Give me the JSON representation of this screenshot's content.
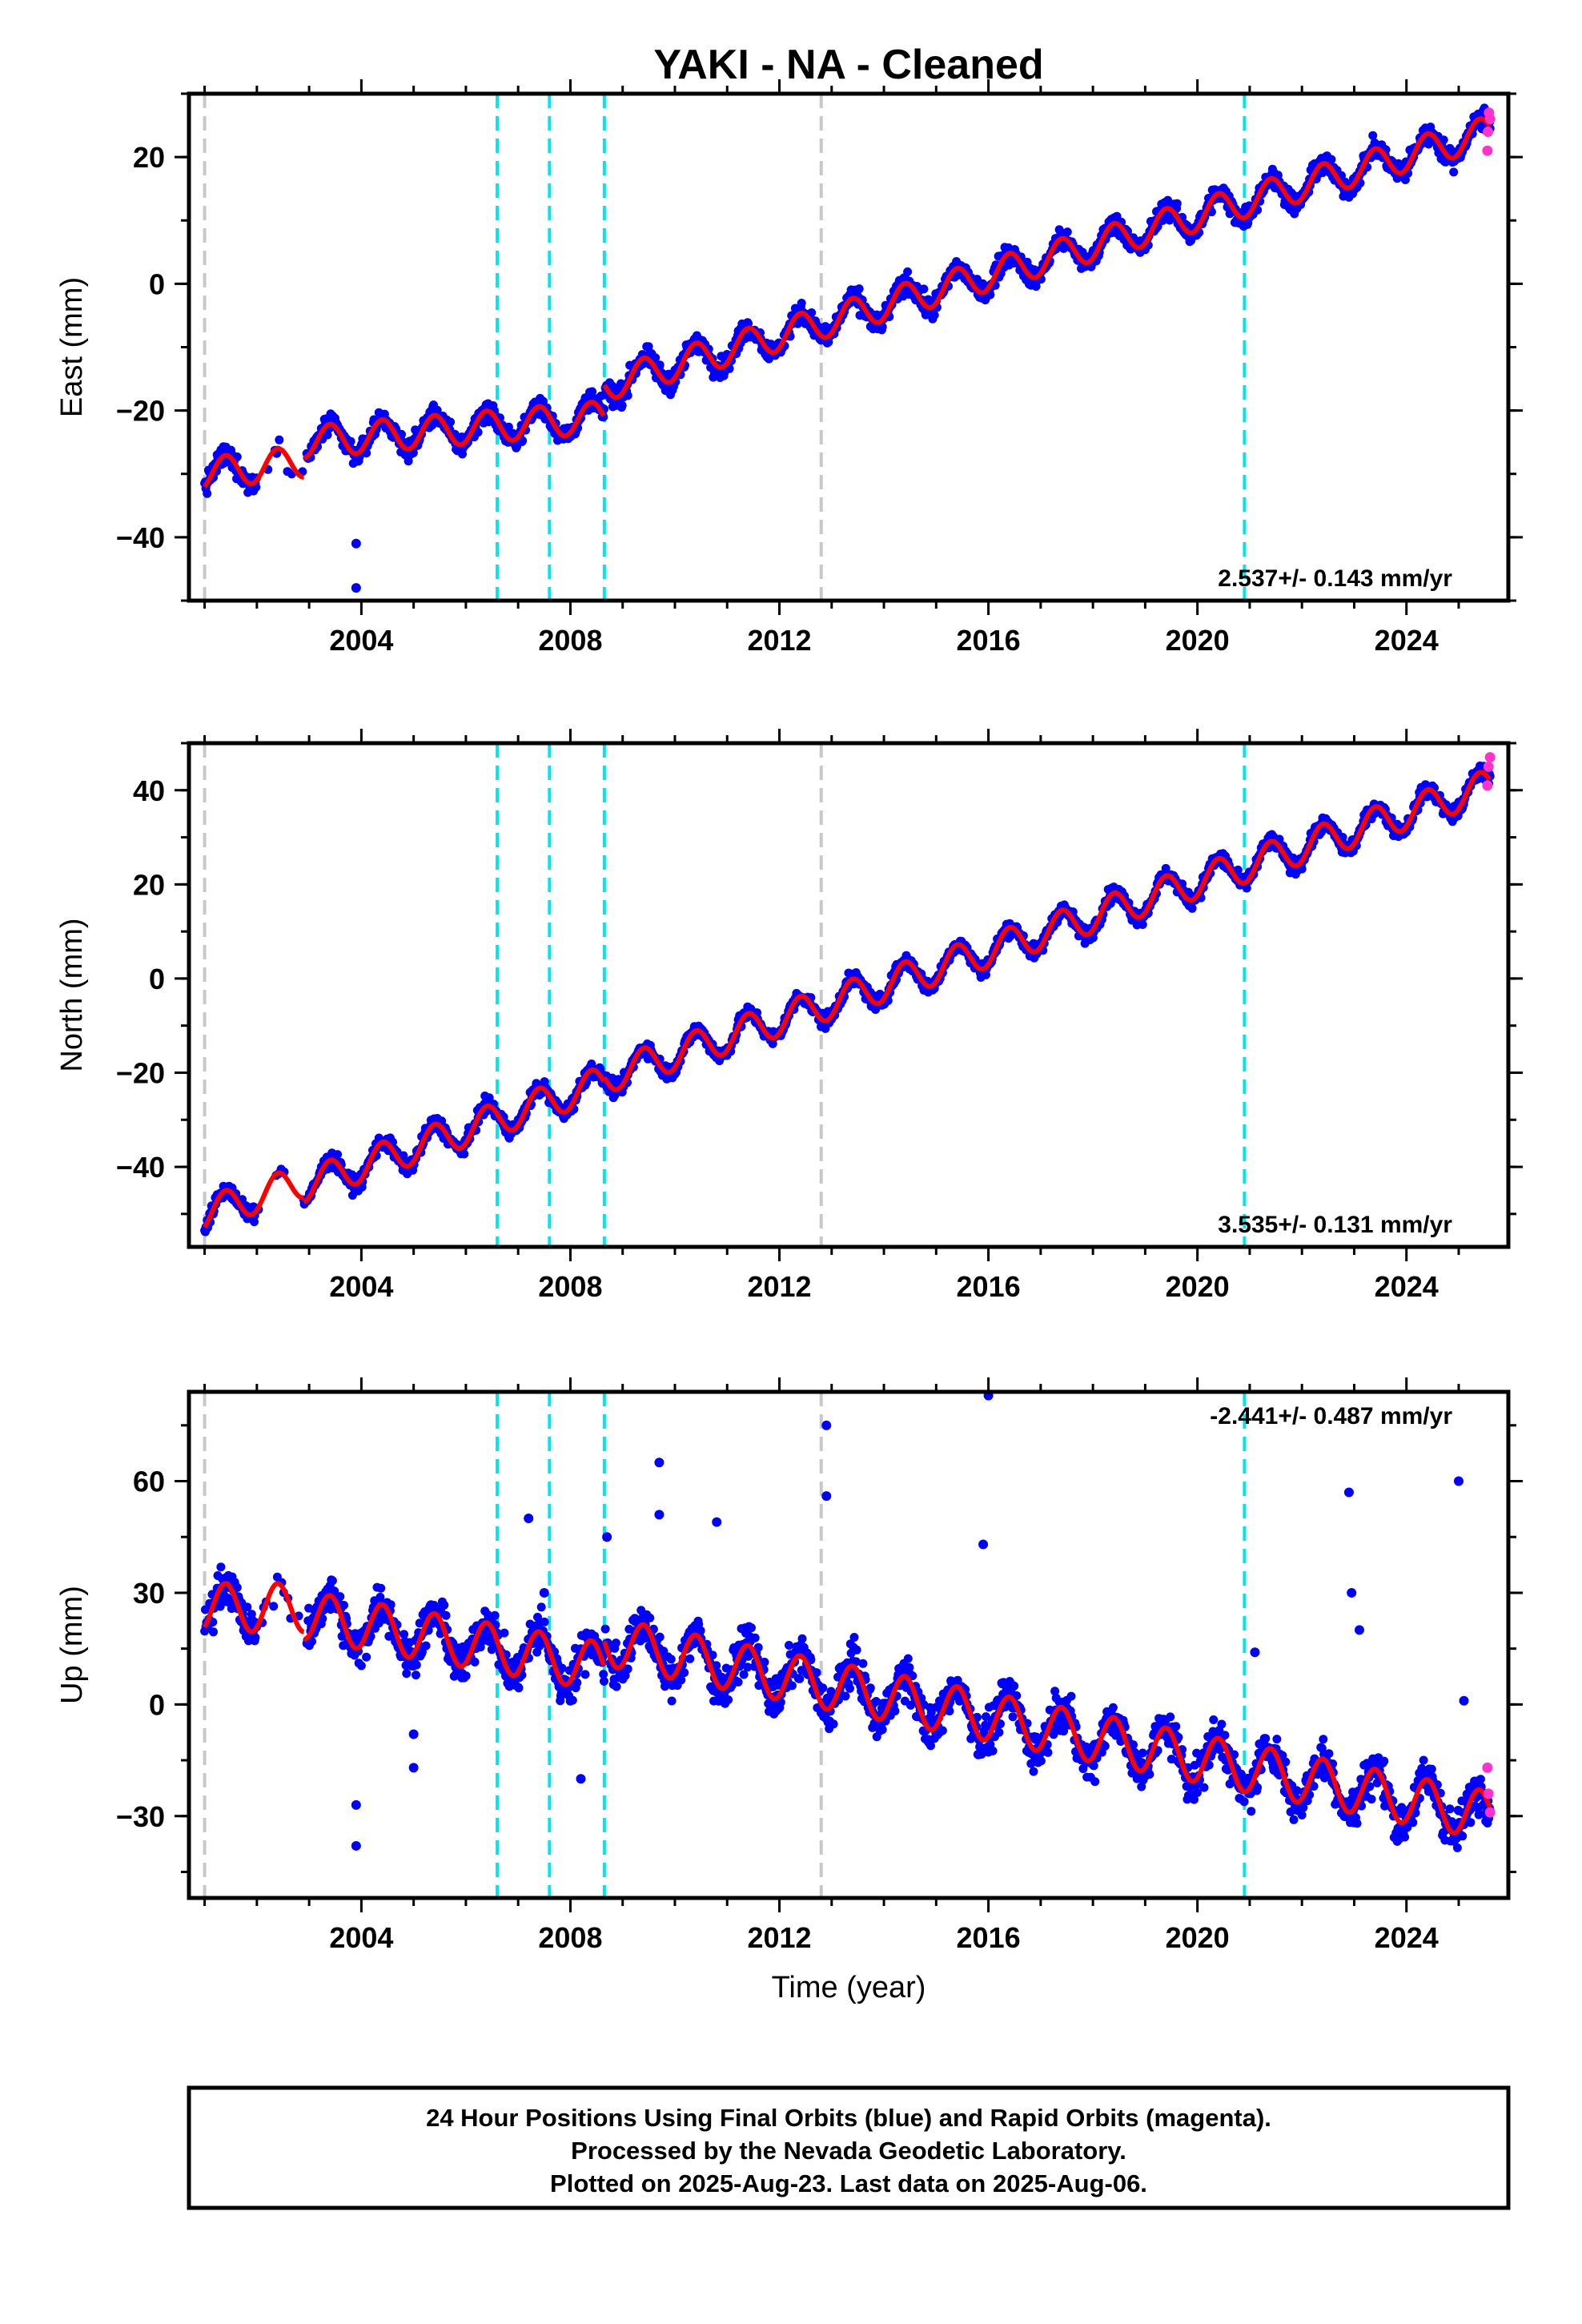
{
  "chart_data": {
    "type": "scatter",
    "title": "YAKI  - NA - Cleaned",
    "xlabel": "Time (year)",
    "xlim": [
      2000.7,
      2025.95
    ],
    "x_ticks": [
      "2004",
      "2008",
      "2012",
      "2016",
      "2020",
      "2024"
    ],
    "x_tick_values": [
      2004,
      2008,
      2012,
      2016,
      2020,
      2024
    ],
    "colors": {
      "final_orbits": "#0000ff",
      "rapid_orbits": "#ff33cc",
      "model": "#ff0000",
      "offset_equipment": "#00e5ee",
      "offset_other": "#c8c8c8"
    },
    "vertical_lines_cyan": [
      2006.6,
      2007.6,
      2008.65,
      2020.9
    ],
    "vertical_lines_gray": [
      2001.0,
      2012.8
    ],
    "data_gap": [
      2002.0,
      2002.95
    ],
    "panels": [
      {
        "component": "East",
        "ylabel": "East (mm)",
        "ylim": [
          -50,
          30
        ],
        "y_ticks": [
          "20",
          "0",
          "−20",
          "−40"
        ],
        "y_tick_values": [
          20,
          0,
          -20,
          -40
        ],
        "rate_label": "2.537+/- 0.143 mm/yr",
        "rate_position": "bottom-right",
        "series": [
          {
            "name": "Final Orbits",
            "noise_mm": 1.6,
            "amplitude_mm": 2.5,
            "segments": [
              {
                "from": 2001.0,
                "to": 2002.9,
                "value_start": -30,
                "value_end": -28
              },
              {
                "from": 2002.9,
                "to": 2008.65,
                "value_start": -25,
                "value_end": -21
              },
              {
                "from": 2008.65,
                "to": 2025.6,
                "value_start": -16,
                "value_end": 24
              }
            ],
            "outliers": [
              [
                2003.9,
                -41
              ],
              [
                2003.9,
                -48
              ]
            ]
          },
          {
            "name": "Rapid Orbits",
            "points": [
              [
                2025.55,
                21
              ],
              [
                2025.56,
                24
              ],
              [
                2025.58,
                27
              ],
              [
                2025.6,
                26
              ]
            ]
          }
        ]
      },
      {
        "component": "North",
        "ylabel": "North (mm)",
        "ylim": [
          -57,
          50
        ],
        "y_ticks": [
          "40",
          "20",
          "0",
          "−20",
          "−40"
        ],
        "y_tick_values": [
          40,
          20,
          0,
          -20,
          -40
        ],
        "rate_label": "3.535+/- 0.131 mm/yr",
        "rate_position": "bottom-right",
        "series": [
          {
            "name": "Final Orbits",
            "noise_mm": 1.6,
            "amplitude_mm": 3.5,
            "segments": [
              {
                "from": 2001.0,
                "to": 2002.9,
                "value_start": -50,
                "value_end": -43
              },
              {
                "from": 2002.9,
                "to": 2008.65,
                "value_start": -44,
                "value_end": -22
              },
              {
                "from": 2008.65,
                "to": 2025.6,
                "value_start": -21,
                "value_end": 41
              }
            ],
            "outliers": []
          },
          {
            "name": "Rapid Orbits",
            "points": [
              [
                2025.55,
                41
              ],
              [
                2025.57,
                45
              ],
              [
                2025.6,
                47
              ]
            ]
          }
        ]
      },
      {
        "component": "Up",
        "ylabel": "Up (mm)",
        "ylim": [
          -52,
          84
        ],
        "y_ticks": [
          "60",
          "30",
          "0",
          "−30"
        ],
        "y_tick_values": [
          60,
          30,
          0,
          -30
        ],
        "rate_label": "-2.441+/- 0.487 mm/yr",
        "rate_position": "top-right",
        "series": [
          {
            "name": "Final Orbits",
            "noise_mm": 5.5,
            "amplitude_mm": 6.5,
            "segments": [
              {
                "from": 2001.0,
                "to": 2002.9,
                "value_start": 26,
                "value_end": 26
              },
              {
                "from": 2002.9,
                "to": 2008.65,
                "value_start": 24,
                "value_end": 10
              },
              {
                "from": 2008.65,
                "to": 2025.6,
                "value_start": 17,
                "value_end": -30
              }
            ],
            "outliers": [
              [
                2003.9,
                -27
              ],
              [
                2003.9,
                -38
              ],
              [
                2005.0,
                -8
              ],
              [
                2005.0,
                -17
              ],
              [
                2007.2,
                50
              ],
              [
                2008.7,
                45
              ],
              [
                2009.7,
                65
              ],
              [
                2009.7,
                51
              ],
              [
                2010.8,
                49
              ],
              [
                2012.9,
                75
              ],
              [
                2012.9,
                56
              ],
              [
                2015.9,
                43
              ],
              [
                2016.0,
                83
              ],
              [
                2021.1,
                14
              ],
              [
                2022.9,
                57
              ],
              [
                2022.95,
                30
              ],
              [
                2023.1,
                20
              ],
              [
                2025.0,
                60
              ],
              [
                2025.1,
                1
              ],
              [
                2008.2,
                -20
              ],
              [
                2007.5,
                30
              ]
            ]
          },
          {
            "name": "Rapid Orbits",
            "points": [
              [
                2025.55,
                -17
              ],
              [
                2025.57,
                -24
              ],
              [
                2025.6,
                -29
              ]
            ]
          }
        ]
      }
    ]
  },
  "footer": {
    "line1": "24 Hour Positions Using Final Orbits (blue) and Rapid Orbits (magenta).",
    "line2": "Processed by the Nevada Geodetic Laboratory.",
    "line3": "Plotted on 2025-Aug-23. Last data on 2025-Aug-06."
  }
}
